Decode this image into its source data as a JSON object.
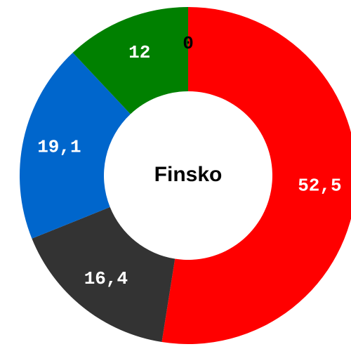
{
  "chart_data": {
    "type": "donut",
    "title": "Finsko",
    "values": [
      52.5,
      16.4,
      19.1,
      12,
      0
    ],
    "value_labels": [
      "52,5",
      "16,4",
      "19,1",
      "12",
      "0"
    ],
    "colors": [
      "#ff0000",
      "#333333",
      "#0066cc",
      "#008000",
      "#000000"
    ],
    "label_colors": [
      "#ffffff",
      "#ffffff",
      "#ffffff",
      "#ffffff",
      "#000000"
    ]
  }
}
